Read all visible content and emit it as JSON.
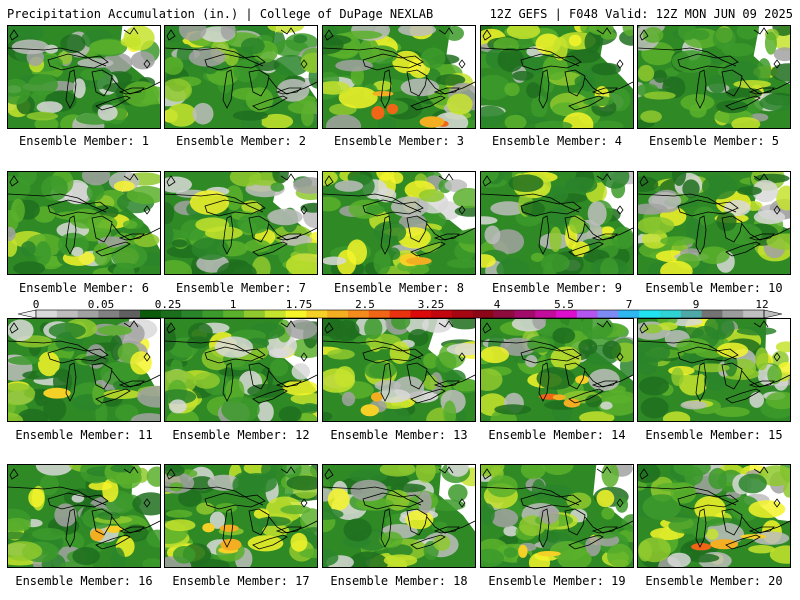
{
  "header": {
    "title": "Precipitation Accumulation (in.) | College of DuPage NEXLAB",
    "run_info": "12Z GEFS | F048 Valid: 12Z MON JUN 09 2025"
  },
  "colorbar": {
    "labels": [
      "0",
      "0.05",
      "0.25",
      "1",
      "1.75",
      "2.5",
      "3.25",
      "4",
      "5.5",
      "7",
      "9",
      "12"
    ],
    "colors": [
      "#d9d9d9",
      "#bdbdbd",
      "#a2a2a2",
      "#818181",
      "#606060",
      "#0c5a0c",
      "#1b6e1b",
      "#2a842a",
      "#3c9a2c",
      "#5bb02c",
      "#8fc92e",
      "#c6e32d",
      "#f5f52a",
      "#f5d127",
      "#f4ae22",
      "#f48b1d",
      "#f06616",
      "#e9330e",
      "#dc0a0a",
      "#c2070f",
      "#a50612",
      "#8b0616",
      "#8d0b3d",
      "#a30b6a",
      "#c20c9b",
      "#dd0fcc",
      "#b355ef",
      "#7d8cf5",
      "#2fb7f2",
      "#21e3ef",
      "#2fd3d3",
      "#4fa8a8",
      "#737373",
      "#9c9c9c",
      "#bfbfbf"
    ]
  },
  "members": [
    {
      "label": "Ensemble Member: 1",
      "intensity": 0.5,
      "hot": 0.0
    },
    {
      "label": "Ensemble Member: 2",
      "intensity": 0.75,
      "hot": 0.0
    },
    {
      "label": "Ensemble Member: 3",
      "intensity": 0.7,
      "hot": 0.9
    },
    {
      "label": "Ensemble Member: 4",
      "intensity": 0.35,
      "hot": 0.0
    },
    {
      "label": "Ensemble Member: 5",
      "intensity": 0.5,
      "hot": 0.0
    },
    {
      "label": "Ensemble Member: 6",
      "intensity": 0.4,
      "hot": 0.0
    },
    {
      "label": "Ensemble Member: 7",
      "intensity": 0.6,
      "hot": 0.0
    },
    {
      "label": "Ensemble Member: 8",
      "intensity": 0.65,
      "hot": 0.3
    },
    {
      "label": "Ensemble Member: 9",
      "intensity": 0.5,
      "hot": 0.0
    },
    {
      "label": "Ensemble Member: 10",
      "intensity": 0.55,
      "hot": 0.0
    },
    {
      "label": "Ensemble Member: 11",
      "intensity": 0.6,
      "hot": 0.2
    },
    {
      "label": "Ensemble Member: 12",
      "intensity": 0.55,
      "hot": 0.0
    },
    {
      "label": "Ensemble Member: 13",
      "intensity": 0.75,
      "hot": 0.4
    },
    {
      "label": "Ensemble Member: 14",
      "intensity": 0.6,
      "hot": 0.6
    },
    {
      "label": "Ensemble Member: 15",
      "intensity": 0.5,
      "hot": 0.0
    },
    {
      "label": "Ensemble Member: 16",
      "intensity": 0.75,
      "hot": 0.3
    },
    {
      "label": "Ensemble Member: 17",
      "intensity": 0.7,
      "hot": 0.6
    },
    {
      "label": "Ensemble Member: 18",
      "intensity": 0.6,
      "hot": 0.0
    },
    {
      "label": "Ensemble Member: 19",
      "intensity": 0.75,
      "hot": 0.3
    },
    {
      "label": "Ensemble Member: 20",
      "intensity": 0.85,
      "hot": 0.5
    }
  ]
}
